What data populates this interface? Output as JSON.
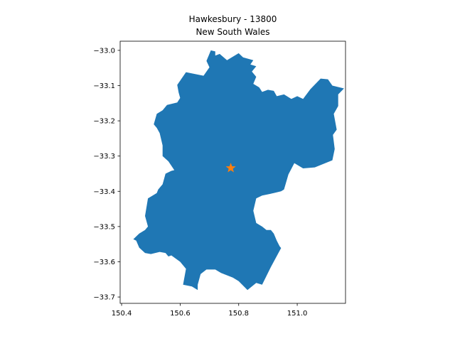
{
  "chart_data": {
    "type": "map",
    "title_line1": "Hawkesbury - 13800",
    "title_line2": "New South Wales",
    "xlim": [
      150.395,
      151.165
    ],
    "ylim": [
      -33.718,
      -32.974
    ],
    "xticks": [
      {
        "value": 150.4,
        "label": "150.4"
      },
      {
        "value": 150.6,
        "label": "150.6"
      },
      {
        "value": 150.8,
        "label": "150.8"
      },
      {
        "value": 151.0,
        "label": "151.0"
      }
    ],
    "yticks": [
      {
        "value": -33.0,
        "label": "−33.0"
      },
      {
        "value": -33.1,
        "label": "−33.1"
      },
      {
        "value": -33.2,
        "label": "−33.2"
      },
      {
        "value": -33.3,
        "label": "−33.3"
      },
      {
        "value": -33.4,
        "label": "−33.4"
      },
      {
        "value": -33.5,
        "label": "−33.5"
      },
      {
        "value": -33.6,
        "label": "−33.6"
      },
      {
        "value": -33.7,
        "label": "−33.7"
      }
    ],
    "region": {
      "name": "Hawkesbury",
      "fill": "#1f77b4",
      "boundary": [
        [
          150.59,
          -33.098
        ],
        [
          150.62,
          -33.062
        ],
        [
          150.68,
          -33.072
        ],
        [
          150.69,
          -33.06
        ],
        [
          150.7,
          -33.048
        ],
        [
          150.69,
          -33.03
        ],
        [
          150.705,
          -33.0
        ],
        [
          150.72,
          -33.003
        ],
        [
          150.72,
          -33.015
        ],
        [
          150.735,
          -33.01
        ],
        [
          150.76,
          -33.028
        ],
        [
          150.8,
          -33.008
        ],
        [
          150.815,
          -33.02
        ],
        [
          150.85,
          -33.028
        ],
        [
          150.84,
          -33.04
        ],
        [
          150.86,
          -33.045
        ],
        [
          150.845,
          -33.06
        ],
        [
          150.86,
          -33.075
        ],
        [
          150.85,
          -33.095
        ],
        [
          150.87,
          -33.105
        ],
        [
          150.88,
          -33.118
        ],
        [
          150.9,
          -33.112
        ],
        [
          150.92,
          -33.115
        ],
        [
          150.93,
          -33.13
        ],
        [
          150.955,
          -33.125
        ],
        [
          150.98,
          -33.138
        ],
        [
          151.0,
          -33.13
        ],
        [
          151.02,
          -33.138
        ],
        [
          151.045,
          -33.11
        ],
        [
          151.08,
          -33.08
        ],
        [
          151.105,
          -33.082
        ],
        [
          151.12,
          -33.1
        ],
        [
          151.16,
          -33.108
        ],
        [
          151.14,
          -33.125
        ],
        [
          151.14,
          -33.158
        ],
        [
          151.125,
          -33.18
        ],
        [
          151.135,
          -33.225
        ],
        [
          151.122,
          -33.24
        ],
        [
          151.128,
          -33.28
        ],
        [
          151.12,
          -33.312
        ],
        [
          151.06,
          -33.332
        ],
        [
          151.02,
          -33.335
        ],
        [
          150.99,
          -33.32
        ],
        [
          150.97,
          -33.352
        ],
        [
          150.955,
          -33.395
        ],
        [
          150.945,
          -33.4
        ],
        [
          150.92,
          -33.405
        ],
        [
          150.88,
          -33.412
        ],
        [
          150.86,
          -33.42
        ],
        [
          150.85,
          -33.455
        ],
        [
          150.86,
          -33.49
        ],
        [
          150.88,
          -33.5
        ],
        [
          150.895,
          -33.51
        ],
        [
          150.91,
          -33.51
        ],
        [
          150.92,
          -33.52
        ],
        [
          150.93,
          -33.54
        ],
        [
          150.94,
          -33.556
        ],
        [
          150.945,
          -33.561
        ],
        [
          150.91,
          -33.615
        ],
        [
          150.88,
          -33.665
        ],
        [
          150.86,
          -33.66
        ],
        [
          150.83,
          -33.68
        ],
        [
          150.8,
          -33.655
        ],
        [
          150.78,
          -33.645
        ],
        [
          150.74,
          -33.632
        ],
        [
          150.72,
          -33.622
        ],
        [
          150.69,
          -33.622
        ],
        [
          150.67,
          -33.635
        ],
        [
          150.66,
          -33.665
        ],
        [
          150.66,
          -33.68
        ],
        [
          150.64,
          -33.67
        ],
        [
          150.61,
          -33.665
        ],
        [
          150.62,
          -33.62
        ],
        [
          150.6,
          -33.6
        ],
        [
          150.57,
          -33.582
        ],
        [
          150.56,
          -33.585
        ],
        [
          150.55,
          -33.575
        ],
        [
          150.53,
          -33.572
        ],
        [
          150.5,
          -33.578
        ],
        [
          150.48,
          -33.575
        ],
        [
          150.46,
          -33.56
        ],
        [
          150.45,
          -33.54
        ],
        [
          150.44,
          -33.536
        ],
        [
          150.46,
          -33.52
        ],
        [
          150.48,
          -33.51
        ],
        [
          150.49,
          -33.5
        ],
        [
          150.48,
          -33.47
        ],
        [
          150.49,
          -33.42
        ],
        [
          150.52,
          -33.405
        ],
        [
          150.525,
          -33.395
        ],
        [
          150.54,
          -33.38
        ],
        [
          150.55,
          -33.35
        ],
        [
          150.57,
          -33.342
        ],
        [
          150.58,
          -33.34
        ],
        [
          150.56,
          -33.315
        ],
        [
          150.54,
          -33.3
        ],
        [
          150.54,
          -33.27
        ],
        [
          150.53,
          -33.235
        ],
        [
          150.52,
          -33.22
        ],
        [
          150.51,
          -33.21
        ],
        [
          150.52,
          -33.18
        ],
        [
          150.54,
          -33.17
        ],
        [
          150.555,
          -33.155
        ],
        [
          150.59,
          -33.148
        ],
        [
          150.6,
          -33.135
        ],
        [
          150.595,
          -33.12
        ]
      ]
    },
    "marker": {
      "type": "star",
      "x": 150.773,
      "y": -33.334,
      "color": "#ff7f0e"
    }
  }
}
